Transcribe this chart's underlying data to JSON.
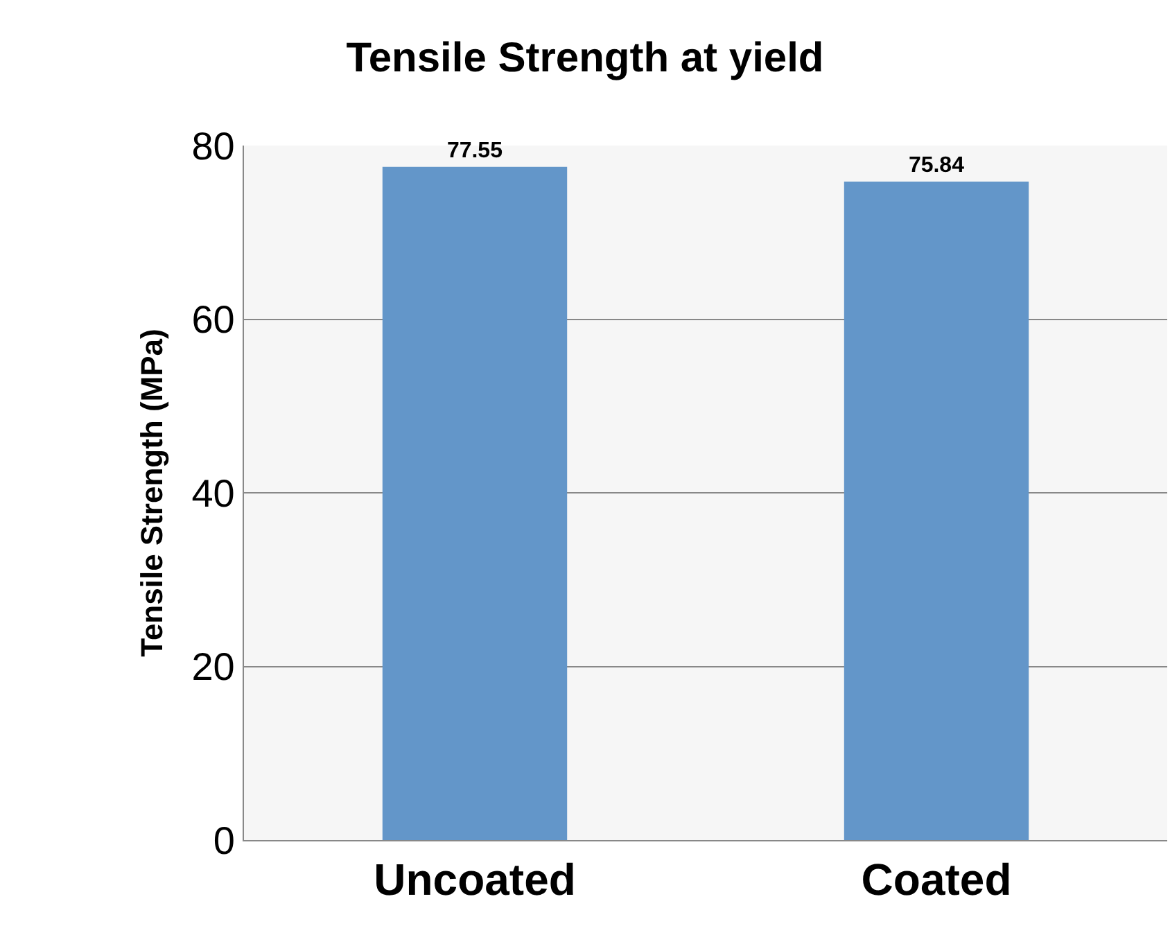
{
  "chart_data": {
    "type": "bar",
    "title": "Tensile Strength at yield",
    "ylabel": "Tensile Strength (MPa)",
    "categories": [
      "Uncoated",
      "Coated"
    ],
    "values": [
      77.55,
      75.84
    ],
    "color": "#6396c9",
    "ylim": [
      0,
      80
    ],
    "yticks": [
      0,
      20,
      40,
      60,
      80
    ],
    "grid": "y",
    "data_labels": true,
    "legend": false
  }
}
